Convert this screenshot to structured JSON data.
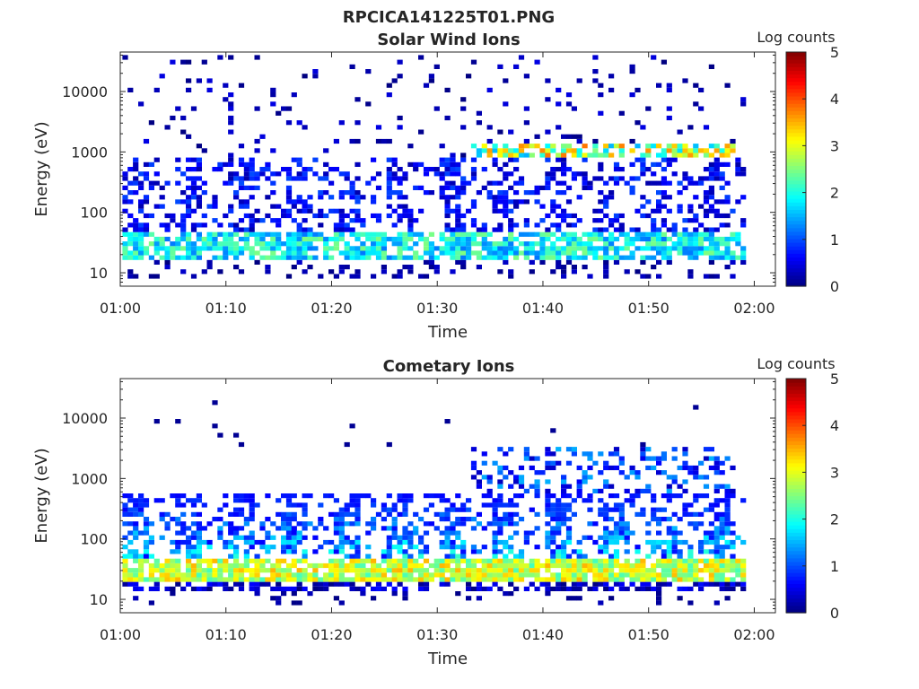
{
  "figure_title": "RPCICA141225T01.PNG",
  "chart_data": [
    {
      "type": "heatmap",
      "title": "Solar Wind Ions",
      "xlabel": "Time",
      "ylabel": "Energy (eV)",
      "x_tick_labels": [
        "01:00",
        "01:10",
        "01:20",
        "01:30",
        "01:40",
        "01:50",
        "02:00"
      ],
      "x_range_minutes_after_0100": [
        0,
        62
      ],
      "y_scale": "log",
      "y_tick_labels": [
        "10",
        "100",
        "1000",
        "10000"
      ],
      "y_range": [
        6,
        45000
      ],
      "colorbar": {
        "label": "Log counts",
        "range": [
          0,
          5
        ],
        "tick_labels": [
          "0",
          "1",
          "2",
          "3",
          "4",
          "5"
        ],
        "colormap": "jet"
      },
      "regimes": [
        {
          "time_range": [
            0,
            33
          ],
          "low_energy_band_eV": [
            15,
            40
          ],
          "low_band_log_counts": 1.9,
          "mid_energy_band_eV": [
            40,
            700
          ],
          "mid_band_log_counts": 0.4
        },
        {
          "time_range": [
            33,
            58
          ],
          "peak_energy_band_eV": [
            400,
            1200
          ],
          "peak_log_counts": 3.2,
          "low_energy_band_eV": [
            15,
            40
          ],
          "low_band_log_counts": 1.7
        }
      ]
    },
    {
      "type": "heatmap",
      "title": "Cometary Ions",
      "xlabel": "Time",
      "ylabel": "Energy (eV)",
      "x_tick_labels": [
        "01:00",
        "01:10",
        "01:20",
        "01:30",
        "01:40",
        "01:50",
        "02:00"
      ],
      "x_range_minutes_after_0100": [
        0,
        62
      ],
      "y_scale": "log",
      "y_tick_labels": [
        "10",
        "100",
        "1000",
        "10000"
      ],
      "y_range": [
        6,
        45000
      ],
      "colorbar": {
        "label": "Log counts",
        "range": [
          0,
          5
        ],
        "tick_labels": [
          "0",
          "1",
          "2",
          "3",
          "4",
          "5"
        ],
        "colormap": "jet"
      },
      "regimes": [
        {
          "time_range": [
            0,
            62
          ],
          "peak_energy_band_eV": [
            20,
            40
          ],
          "peak_log_counts": 3.0,
          "spread_energy_band_eV": [
            40,
            500
          ],
          "spread_log_counts": 1.8
        },
        {
          "time_range": [
            33,
            58
          ],
          "secondary_band_eV": [
            500,
            3000
          ],
          "secondary_log_counts": 1.0
        }
      ]
    }
  ]
}
